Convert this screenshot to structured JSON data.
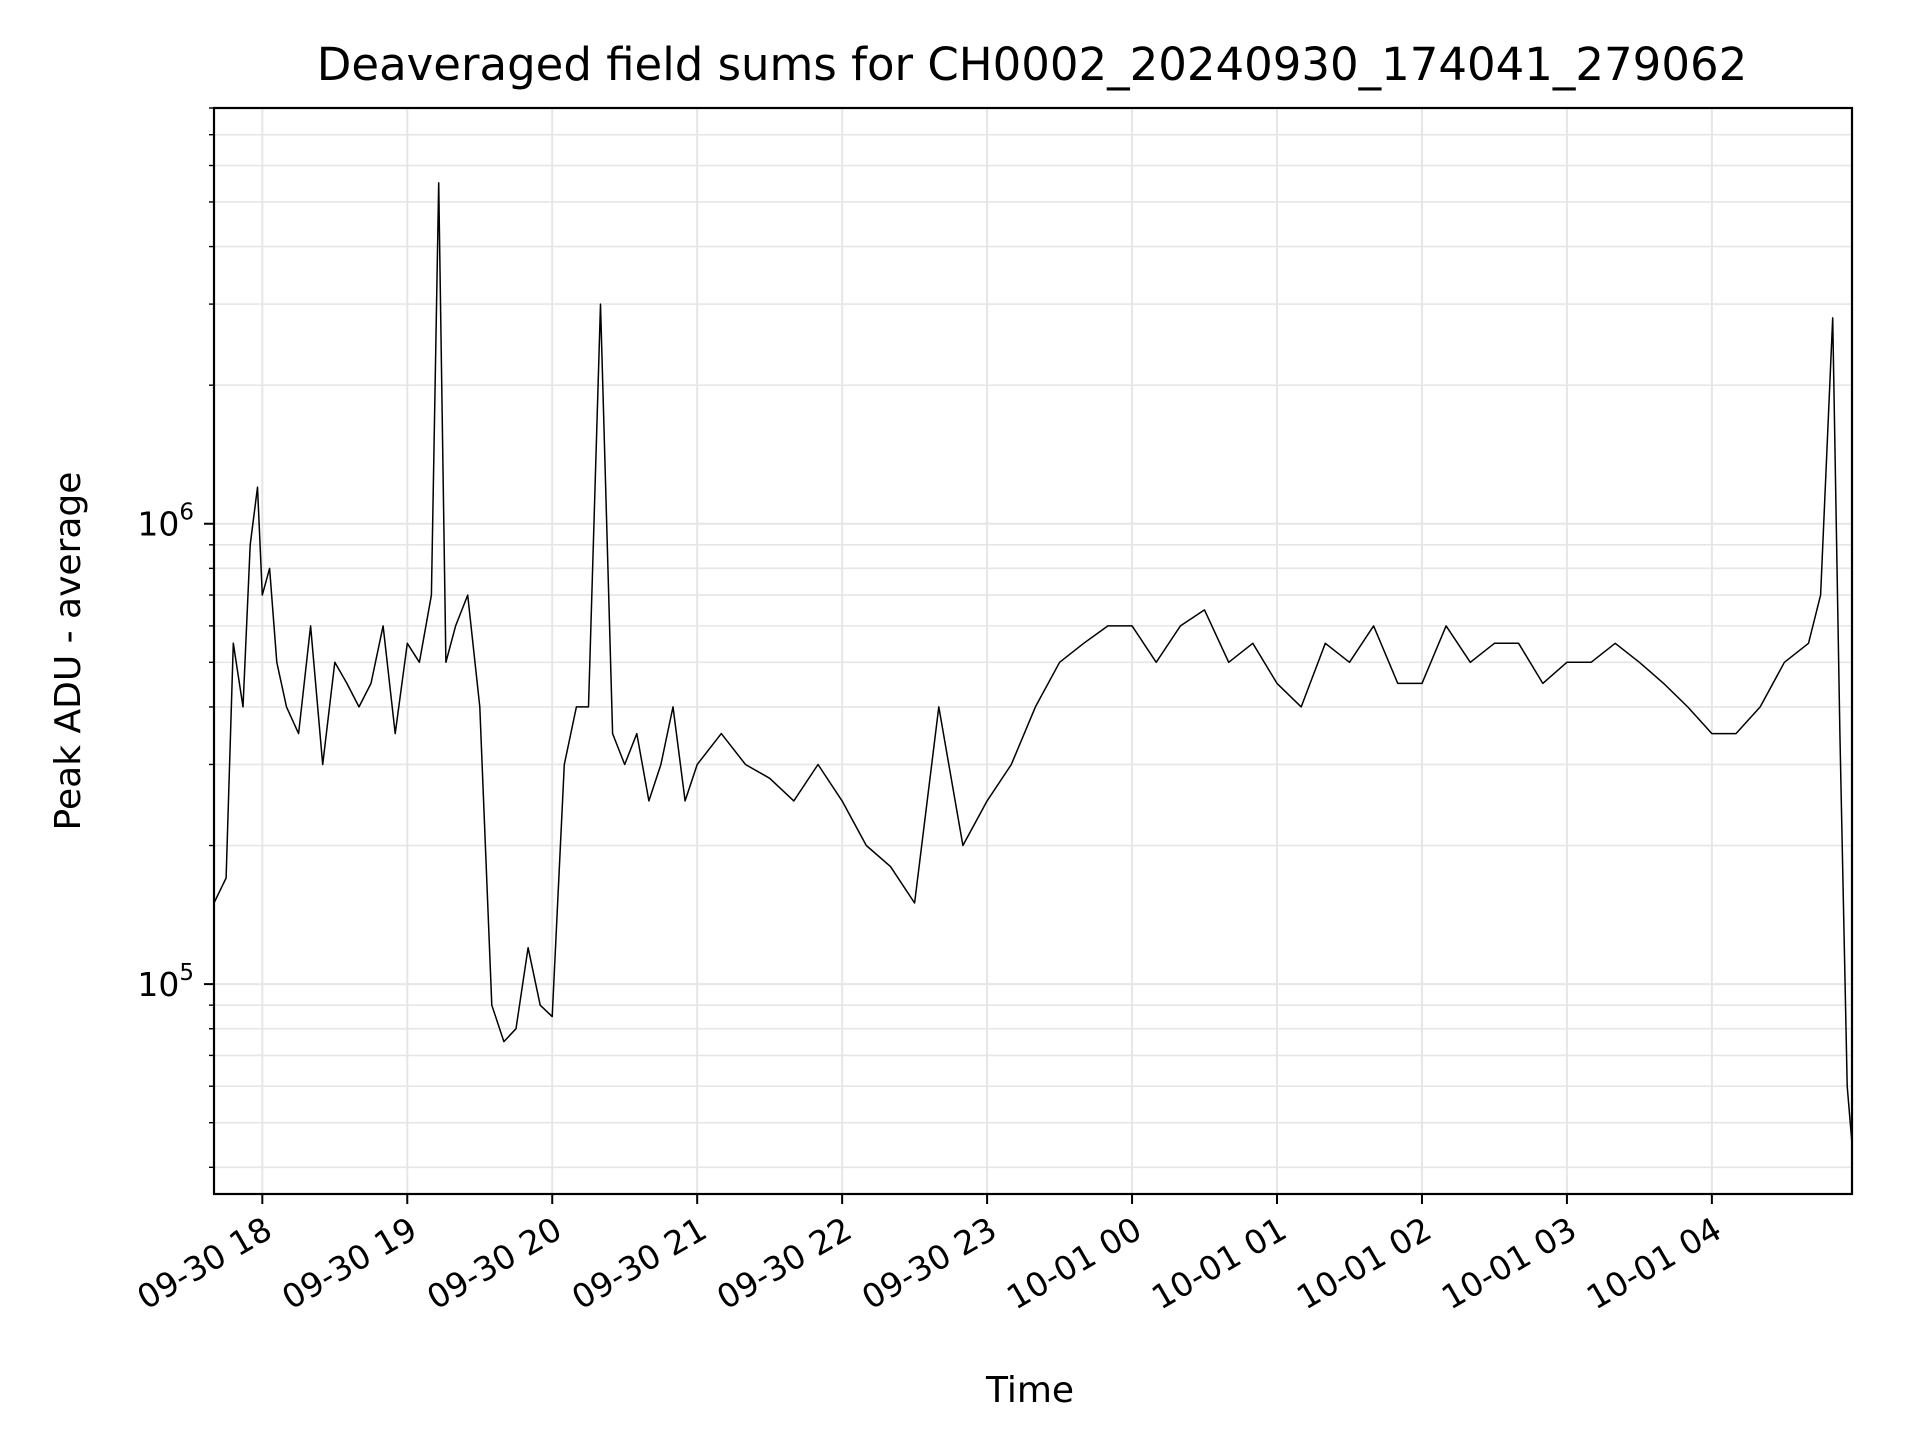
{
  "chart_data": {
    "type": "line",
    "title": "Deaveraged field sums for CH0002_20240930_174041_279062",
    "xlabel": "Time",
    "ylabel": "Peak ADU - average",
    "yscale": "log",
    "ylim": [
      35000,
      8000000
    ],
    "xlim": [
      "2024-09-30 17:40",
      "2024-10-01 04:58"
    ],
    "x_ticks": [
      {
        "value": "2024-09-30 18:00",
        "label": "09-30 18"
      },
      {
        "value": "2024-09-30 19:00",
        "label": "09-30 19"
      },
      {
        "value": "2024-09-30 20:00",
        "label": "09-30 20"
      },
      {
        "value": "2024-09-30 21:00",
        "label": "09-30 21"
      },
      {
        "value": "2024-09-30 22:00",
        "label": "09-30 22"
      },
      {
        "value": "2024-09-30 23:00",
        "label": "09-30 23"
      },
      {
        "value": "2024-10-01 00:00",
        "label": "10-01 00"
      },
      {
        "value": "2024-10-01 01:00",
        "label": "10-01 01"
      },
      {
        "value": "2024-10-01 02:00",
        "label": "10-01 02"
      },
      {
        "value": "2024-10-01 03:00",
        "label": "10-01 03"
      },
      {
        "value": "2024-10-01 04:00",
        "label": "10-01 04"
      }
    ],
    "y_ticks": [
      {
        "value": 100000,
        "base": "10",
        "exp": "5"
      },
      {
        "value": 1000000,
        "base": "10",
        "exp": "6"
      }
    ],
    "grid": true,
    "line_color": "#000000",
    "series": [
      {
        "x": [
          "2024-09-30 17:40",
          "2024-09-30 17:45",
          "2024-09-30 17:48",
          "2024-09-30 17:52",
          "2024-09-30 17:55",
          "2024-09-30 17:58",
          "2024-09-30 18:00",
          "2024-09-30 18:03",
          "2024-09-30 18:06",
          "2024-09-30 18:10",
          "2024-09-30 18:15",
          "2024-09-30 18:20",
          "2024-09-30 18:25",
          "2024-09-30 18:30",
          "2024-09-30 18:35",
          "2024-09-30 18:40",
          "2024-09-30 18:45",
          "2024-09-30 18:50",
          "2024-09-30 18:55",
          "2024-09-30 19:00",
          "2024-09-30 19:05",
          "2024-09-30 19:10",
          "2024-09-30 19:13",
          "2024-09-30 19:16",
          "2024-09-30 19:20",
          "2024-09-30 19:25",
          "2024-09-30 19:30",
          "2024-09-30 19:35",
          "2024-09-30 19:40",
          "2024-09-30 19:45",
          "2024-09-30 19:50",
          "2024-09-30 19:55",
          "2024-09-30 20:00",
          "2024-09-30 20:05",
          "2024-09-30 20:10",
          "2024-09-30 20:15",
          "2024-09-30 20:20",
          "2024-09-30 20:25",
          "2024-09-30 20:30",
          "2024-09-30 20:35",
          "2024-09-30 20:40",
          "2024-09-30 20:45",
          "2024-09-30 20:50",
          "2024-09-30 20:55",
          "2024-09-30 21:00",
          "2024-09-30 21:10",
          "2024-09-30 21:20",
          "2024-09-30 21:30",
          "2024-09-30 21:40",
          "2024-09-30 21:50",
          "2024-09-30 22:00",
          "2024-09-30 22:10",
          "2024-09-30 22:20",
          "2024-09-30 22:30",
          "2024-09-30 22:40",
          "2024-09-30 22:50",
          "2024-09-30 23:00",
          "2024-09-30 23:10",
          "2024-09-30 23:20",
          "2024-09-30 23:30",
          "2024-09-30 23:40",
          "2024-09-30 23:50",
          "2024-10-01 00:00",
          "2024-10-01 00:10",
          "2024-10-01 00:20",
          "2024-10-01 00:30",
          "2024-10-01 00:40",
          "2024-10-01 00:50",
          "2024-10-01 01:00",
          "2024-10-01 01:10",
          "2024-10-01 01:20",
          "2024-10-01 01:30",
          "2024-10-01 01:40",
          "2024-10-01 01:50",
          "2024-10-01 02:00",
          "2024-10-01 02:10",
          "2024-10-01 02:20",
          "2024-10-01 02:30",
          "2024-10-01 02:40",
          "2024-10-01 02:50",
          "2024-10-01 03:00",
          "2024-10-01 03:10",
          "2024-10-01 03:20",
          "2024-10-01 03:30",
          "2024-10-01 03:40",
          "2024-10-01 03:50",
          "2024-10-01 04:00",
          "2024-10-01 04:10",
          "2024-10-01 04:20",
          "2024-10-01 04:30",
          "2024-10-01 04:40",
          "2024-10-01 04:45",
          "2024-10-01 04:50",
          "2024-10-01 04:53",
          "2024-10-01 04:56",
          "2024-10-01 04:58"
        ],
        "y": [
          150000,
          170000,
          550000,
          400000,
          900000,
          1200000,
          700000,
          800000,
          500000,
          400000,
          350000,
          600000,
          300000,
          500000,
          450000,
          400000,
          450000,
          600000,
          350000,
          550000,
          500000,
          700000,
          5500000,
          500000,
          600000,
          700000,
          400000,
          90000,
          75000,
          80000,
          120000,
          90000,
          85000,
          300000,
          400000,
          400000,
          3000000,
          350000,
          300000,
          350000,
          250000,
          300000,
          400000,
          250000,
          300000,
          350000,
          300000,
          280000,
          250000,
          300000,
          250000,
          200000,
          180000,
          150000,
          400000,
          200000,
          250000,
          300000,
          400000,
          500000,
          550000,
          600000,
          600000,
          500000,
          600000,
          650000,
          500000,
          550000,
          450000,
          400000,
          550000,
          500000,
          600000,
          450000,
          450000,
          600000,
          500000,
          550000,
          550000,
          450000,
          500000,
          500000,
          550000,
          500000,
          450000,
          400000,
          350000,
          350000,
          400000,
          500000,
          550000,
          700000,
          2800000,
          350000,
          60000,
          45000
        ]
      }
    ]
  }
}
